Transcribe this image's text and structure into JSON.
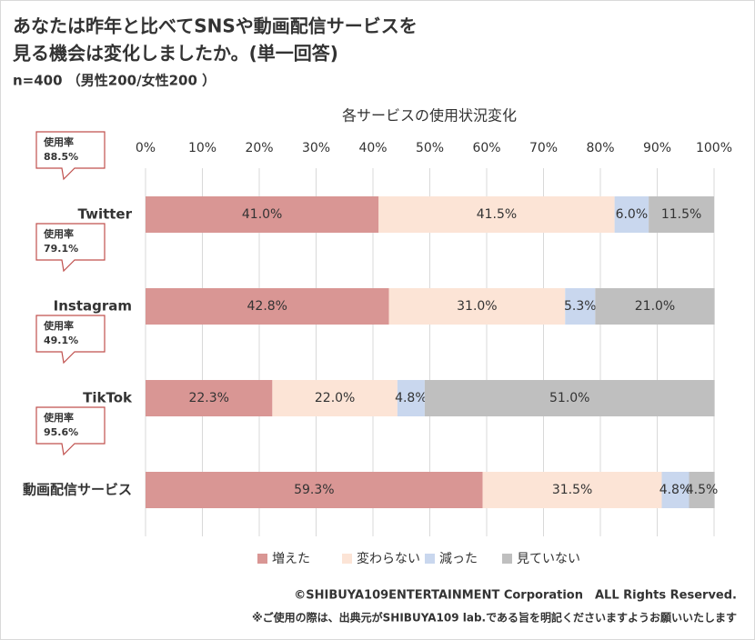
{
  "chart_data": {
    "type": "stacked_barh",
    "title": [
      "あなたは昨年と比べてSNSや動画配信サービスを",
      "見る機会は変化しましたか。(単一回答)"
    ],
    "subtitle": "n=400 （男性200/女性200 ）",
    "chart_title": "各サービスの使用状況変化",
    "categories": [
      "Twitter",
      "Instagram",
      "TikTok",
      "動画配信サービス"
    ],
    "series": [
      {
        "name": "増えた",
        "color": "#d99694",
        "values": [
          41.0,
          42.8,
          22.3,
          59.3
        ],
        "value_labels": [
          "41.0%",
          "42.8%",
          "22.3%",
          "59.3%"
        ]
      },
      {
        "name": "変わらない",
        "color": "#fce4d6",
        "values": [
          41.5,
          31.0,
          22.0,
          31.5
        ],
        "value_labels": [
          "41.5%",
          "31.0%",
          "22.0%",
          "31.5%"
        ]
      },
      {
        "name": "減った",
        "color": "#c9d7ee",
        "values": [
          6.0,
          5.3,
          4.8,
          4.8
        ],
        "value_labels": [
          "6.0%",
          "5.3%",
          "4.8%",
          "4.8%"
        ]
      },
      {
        "name": "見ていない",
        "color": "#bfbfbf",
        "values": [
          11.5,
          21.0,
          51.0,
          4.5
        ],
        "value_labels": [
          "11.5%",
          "21.0%",
          "51.0%",
          "4.5%"
        ]
      }
    ],
    "xlim": [
      0,
      100
    ],
    "xticks": [
      {
        "value": 0,
        "label": "0%"
      },
      {
        "value": 10,
        "label": "10%"
      },
      {
        "value": 20,
        "label": "20%"
      },
      {
        "value": 30,
        "label": "30%"
      },
      {
        "value": 40,
        "label": "40%"
      },
      {
        "value": 50,
        "label": "50%"
      },
      {
        "value": 60,
        "label": "60%"
      },
      {
        "value": 70,
        "label": "70%"
      },
      {
        "value": 80,
        "label": "80%"
      },
      {
        "value": 90,
        "label": "90%"
      },
      {
        "value": 100,
        "label": "100%"
      }
    ],
    "grid": true,
    "legend": "bottom",
    "usage_rate": {
      "label": "使用率",
      "value_labels": [
        "88.5%",
        "79.1%",
        "49.1%",
        "95.6%"
      ]
    },
    "footer": [
      "©SHIBUYA109ENTERTAINMENT Corporation　ALL Rights Reserved.",
      "※ご使用の際は、出典元がSHIBUYA109 lab.である旨を明記くださいますようお願いいたします"
    ]
  }
}
